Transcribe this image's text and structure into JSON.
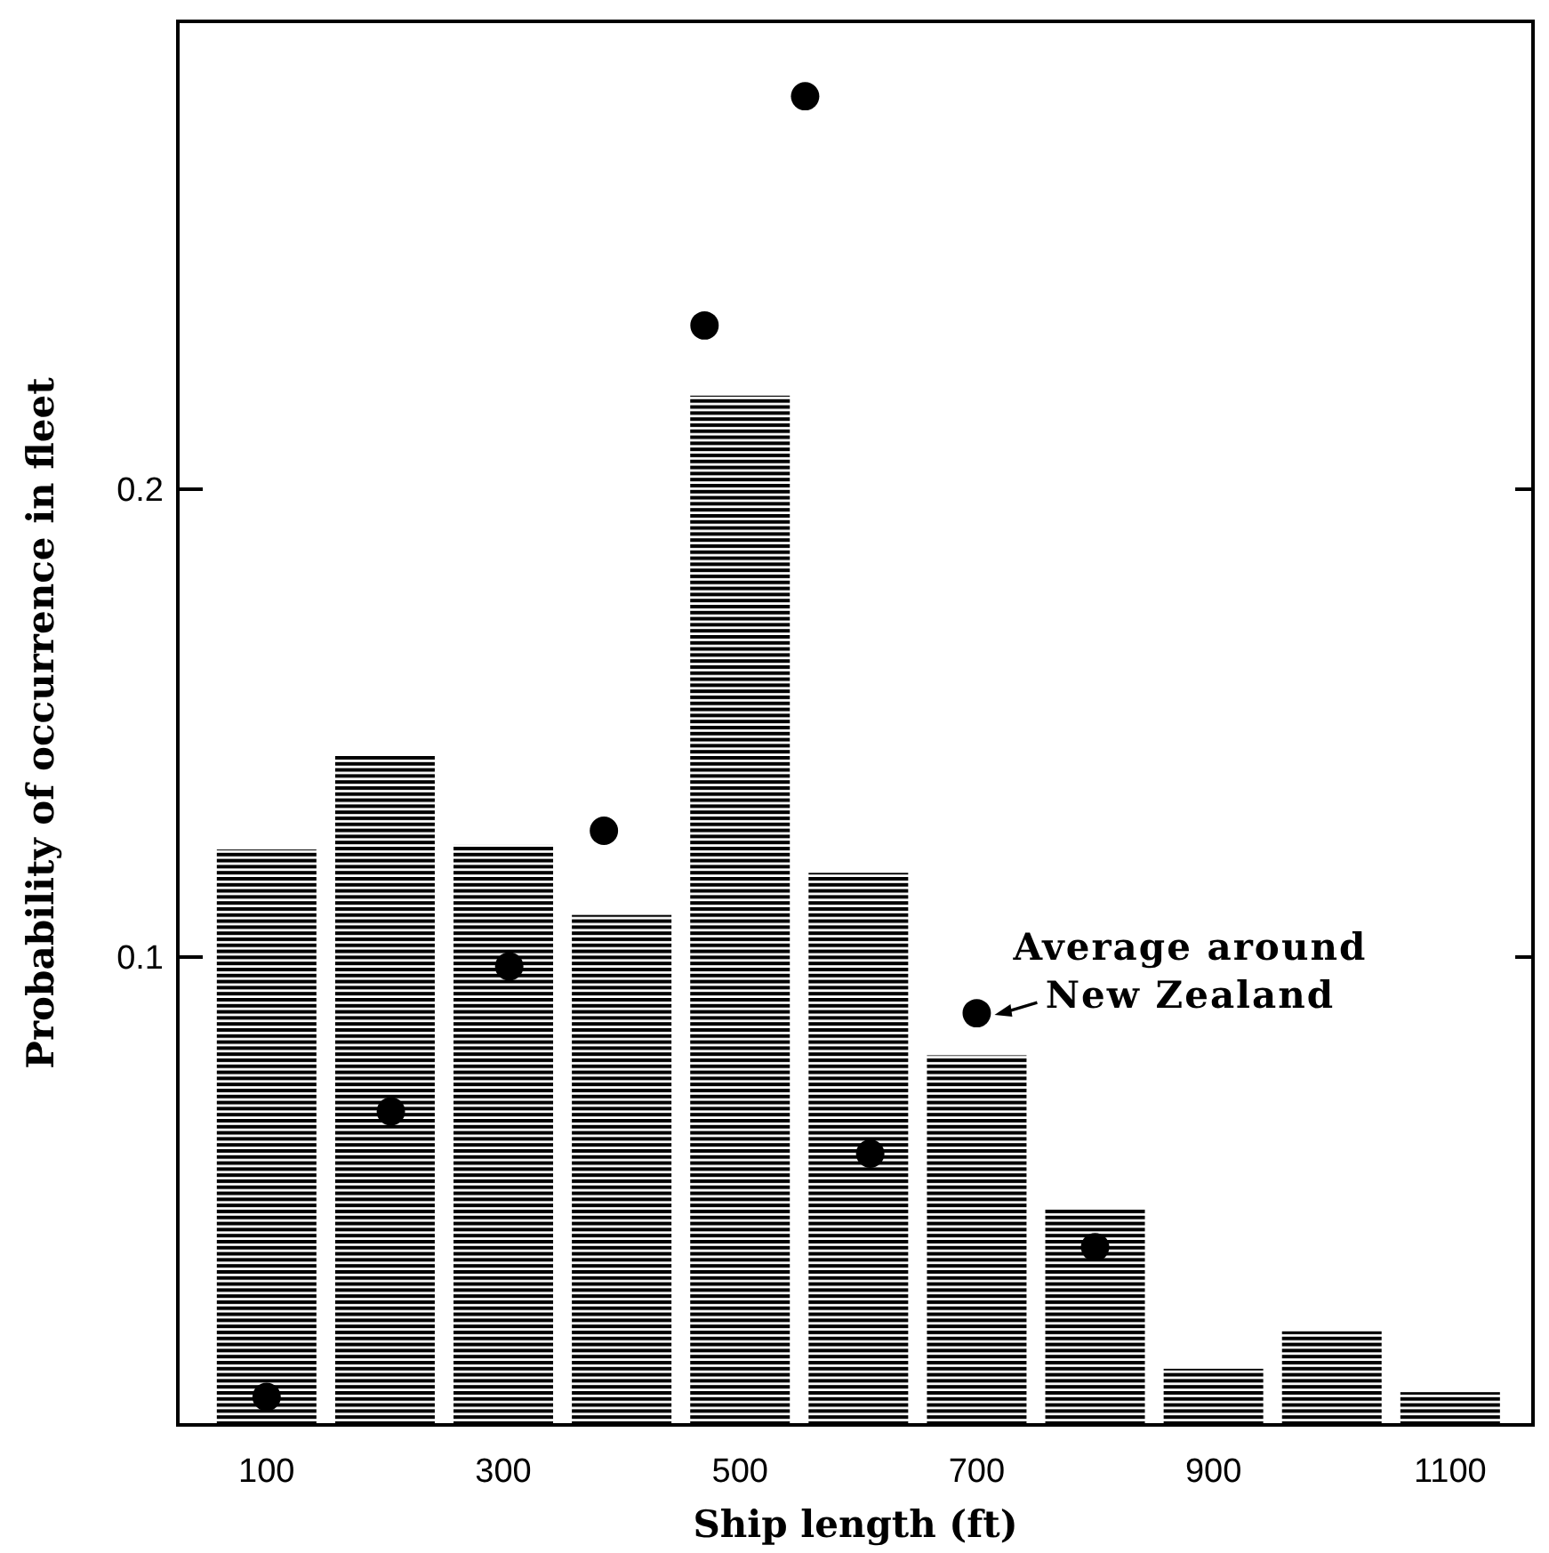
{
  "chart_data": {
    "type": "bar",
    "xlabel": "Ship length (ft)",
    "ylabel": "Probability of occurrence in fleet",
    "xlim": [
      25,
      1170
    ],
    "xticks": [
      100,
      300,
      500,
      700,
      900,
      1100
    ],
    "ylim": [
      0,
      0.3
    ],
    "yticks": [
      0.1,
      0.2
    ],
    "grid": false,
    "series": [
      {
        "color": "#000000",
        "x": [
          100,
          200,
          300,
          400,
          500,
          600,
          700,
          800,
          900,
          1000,
          1100
        ],
        "values": [
          0.123,
          0.143,
          0.124,
          0.109,
          0.22,
          0.118,
          0.079,
          0.046,
          0.012,
          0.02,
          0.007
        ]
      },
      {
        "type": "scatter",
        "color": "#000000",
        "marker": "circle",
        "x": [
          100,
          205,
          305,
          385,
          470,
          555,
          610,
          700,
          800
        ],
        "values": [
          0.006,
          0.067,
          0.098,
          0.127,
          0.235,
          0.284,
          0.058,
          0.088,
          0.038
        ]
      }
    ],
    "annotations": [
      {
        "text": "Average around\nNew Zealand",
        "x": 700,
        "y": 0.088
      }
    ]
  }
}
